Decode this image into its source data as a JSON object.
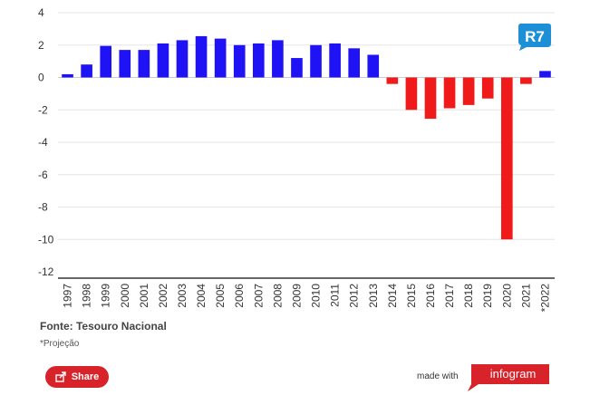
{
  "chart_data": {
    "type": "bar",
    "categories": [
      "1997",
      "1998",
      "1999",
      "2000",
      "2001",
      "2002",
      "2003",
      "2004",
      "2005",
      "2006",
      "2007",
      "2008",
      "2009",
      "2010",
      "2011",
      "2012",
      "2013",
      "2014",
      "2015",
      "2016",
      "2017",
      "2018",
      "2019",
      "2020",
      "2021",
      "*2022"
    ],
    "values": [
      0.2,
      0.8,
      1.95,
      1.7,
      1.7,
      2.1,
      2.3,
      2.55,
      2.4,
      2.0,
      2.1,
      2.3,
      1.2,
      2.0,
      2.1,
      1.8,
      1.4,
      -0.4,
      -2.0,
      -2.55,
      -1.9,
      -1.7,
      -1.3,
      -10.0,
      -0.4,
      0.4
    ],
    "ylim": [
      -12,
      4
    ],
    "yticks": [
      "4",
      "2",
      "0",
      "-2",
      "-4",
      "-6",
      "-8",
      "-10",
      "-12"
    ],
    "ytick_values": [
      4,
      2,
      0,
      -2,
      -4,
      -6,
      -8,
      -10,
      -12
    ],
    "grid": true,
    "colors": {
      "positive": "#1f12f5",
      "negative": "#f01a1a"
    }
  },
  "footer": {
    "source": "Fonte: Tesouro Nacional",
    "note": "*Projeção",
    "share_label": "Share",
    "made_with": "made with",
    "infogram": "infogram"
  },
  "logo": {
    "text": "R7",
    "color": "#1d8fd6"
  },
  "icons": {
    "share": "share-icon",
    "logo": "r7-logo"
  }
}
